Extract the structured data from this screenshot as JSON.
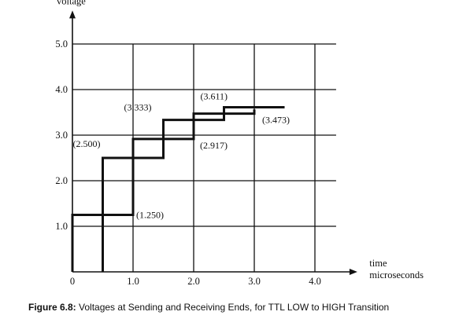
{
  "chart_data": {
    "type": "line",
    "title": "",
    "xlabel": [
      "time",
      "microseconds"
    ],
    "ylabel": "voltage",
    "xlim": [
      0,
      4.7
    ],
    "ylim": [
      0,
      5.7
    ],
    "x_ticks": [
      0,
      1.0,
      2.0,
      3.0,
      4.0
    ],
    "x_tick_labels": [
      "0",
      "1.0",
      "2.0",
      "3.0",
      "4.0"
    ],
    "y_ticks": [
      1.0,
      2.0,
      3.0,
      4.0,
      5.0
    ],
    "y_tick_labels": [
      "1.0",
      "2.0",
      "3.0",
      "4.0",
      "5.0"
    ],
    "grid": true,
    "series": [
      {
        "values": [
          [
            0,
            0
          ],
          [
            0,
            1.25
          ],
          [
            1.0,
            1.25
          ],
          [
            1.0,
            2.917
          ],
          [
            2.0,
            2.917
          ],
          [
            2.0,
            3.473
          ],
          [
            3.0,
            3.473
          ],
          [
            3.0,
            3.565
          ]
        ]
      },
      {
        "values": [
          [
            0.5,
            0
          ],
          [
            0.5,
            2.5
          ],
          [
            1.5,
            2.5
          ],
          [
            1.5,
            3.333
          ],
          [
            2.5,
            3.333
          ],
          [
            2.5,
            3.611
          ],
          [
            3.5,
            3.611
          ]
        ]
      }
    ],
    "annotations": [
      {
        "text": "(1.250)",
        "x": 1.0,
        "y": 1.25
      },
      {
        "text": "(2.500)",
        "x": 0.5,
        "y": 2.5
      },
      {
        "text": "(2.917)",
        "x": 2.0,
        "y": 2.917
      },
      {
        "text": "(3.333)",
        "x": 1.5,
        "y": 3.333
      },
      {
        "text": "(3.473)",
        "x": 3.0,
        "y": 3.473
      },
      {
        "text": "(3.611)",
        "x": 2.5,
        "y": 3.611
      }
    ]
  },
  "caption": {
    "figure_number": "Figure 6.8:",
    "text": " Voltages at Sending and Receiving Ends, for TTL LOW to HIGH Transition"
  }
}
